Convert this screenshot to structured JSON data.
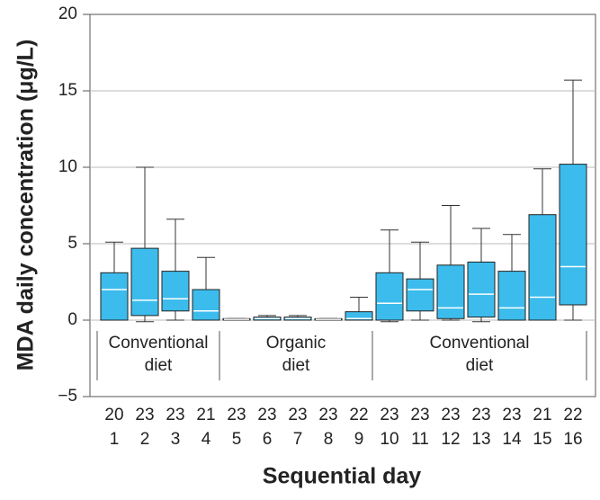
{
  "chart_data": {
    "type": "box",
    "y_label": "MDA daily concentration (μg/L)",
    "x_label": "Sequential day",
    "categories": [
      "1",
      "2",
      "3",
      "4",
      "5",
      "6",
      "7",
      "8",
      "9",
      "10",
      "11",
      "12",
      "13",
      "14",
      "15",
      "16"
    ],
    "counts": [
      20,
      23,
      23,
      21,
      23,
      23,
      23,
      23,
      22,
      23,
      23,
      23,
      23,
      23,
      21,
      22
    ],
    "low": [
      0,
      -0.1,
      0,
      0,
      0,
      0,
      0,
      0,
      0,
      -0.1,
      0,
      0,
      -0.1,
      0,
      0,
      0
    ],
    "q1": [
      0,
      0.3,
      0.6,
      0,
      0,
      0,
      0,
      0,
      0,
      0,
      0.6,
      0.1,
      0.2,
      0,
      0,
      1.0
    ],
    "median": [
      2.0,
      1.3,
      1.4,
      0.6,
      0.05,
      0.1,
      0.1,
      0.05,
      0.1,
      1.1,
      2.0,
      0.8,
      1.7,
      0.8,
      1.5,
      3.5
    ],
    "q3": [
      3.1,
      4.7,
      3.2,
      2.0,
      0.1,
      0.2,
      0.2,
      0.1,
      0.55,
      3.1,
      2.7,
      3.6,
      3.8,
      3.2,
      6.9,
      10.2
    ],
    "high": [
      5.1,
      10.0,
      6.6,
      4.1,
      0.1,
      0.3,
      0.3,
      0.1,
      1.5,
      5.9,
      5.1,
      7.5,
      6.0,
      5.6,
      9.9,
      15.7
    ],
    "color": "#3cbcec",
    "groups": [
      {
        "lines": [
          "Conventional",
          "diet"
        ],
        "start": 1,
        "end": 4
      },
      {
        "lines": [
          "Organic",
          "diet"
        ],
        "start": 5,
        "end": 9
      },
      {
        "lines": [
          "Conventional",
          "diet"
        ],
        "start": 10,
        "end": 16
      }
    ],
    "ylim": [
      -5,
      20
    ],
    "yticks": [
      {
        "value": -5,
        "label": "−5"
      },
      0,
      5,
      10,
      15,
      20
    ],
    "grid": true
  }
}
